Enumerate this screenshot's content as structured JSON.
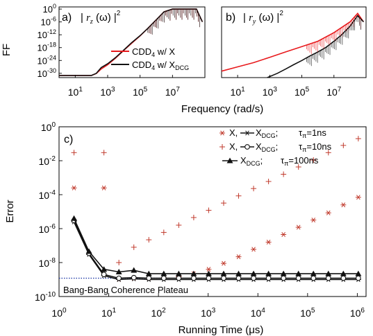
{
  "figure": {
    "ff_label": "FF",
    "shared_xlabel": "Frequency (rad/s)"
  },
  "chart_data": [
    {
      "type": "line",
      "panel": "a)",
      "title_prefix": "| ",
      "title_var": "r",
      "title_sub": "z",
      "title_suffix": " (ω) |",
      "title_sup": "2",
      "xscale": "log",
      "yscale": "log",
      "xlim": [
        1,
        1000000000.0
      ],
      "ylim": [
        1e-32,
        10
      ],
      "x_ticks": [
        10,
        1000,
        100000,
        10000000
      ],
      "x_tick_labels": [
        {
          "base": "10",
          "exp": "1"
        },
        {
          "base": "10",
          "exp": "3"
        },
        {
          "base": "10",
          "exp": "5"
        },
        {
          "base": "10",
          "exp": "7"
        }
      ],
      "y_ticks": [
        1,
        1e-06,
        1e-12,
        1e-18,
        1e-24,
        1e-30
      ],
      "y_tick_labels": [
        {
          "base": "10",
          "exp": "0"
        },
        {
          "base": "10",
          "exp": "-6"
        },
        {
          "base": "10",
          "exp": "-12"
        },
        {
          "base": "10",
          "exp": "-18"
        },
        {
          "base": "10",
          "exp": "-24"
        },
        {
          "base": "10",
          "exp": "-30"
        }
      ],
      "legend_position": "bottom-right",
      "series": [
        {
          "name": "CDD4 w/ X",
          "legend_text": "CDD",
          "legend_sub": "4",
          "legend_rest": " w/ X",
          "legend_rest_sub": "",
          "color": "#e8191c",
          "x": [
            1,
            10,
            100,
            200,
            400,
            1000,
            3000,
            10000,
            30000,
            100000,
            300000,
            1000000,
            3000000,
            10000000,
            100000000,
            300000000,
            700000000
          ],
          "y": [
            1e-31,
            1e-31,
            1e-31,
            8e-31,
            1e-28,
            1e-26,
            1e-23,
            5e-20,
            1e-16,
            3e-13,
            1e-09,
            1e-05,
            0.05,
            1,
            1,
            1,
            1e-06
          ]
        },
        {
          "name": "CDD4 w/ XDCG",
          "legend_text": "CDD",
          "legend_sub": "4",
          "legend_rest": " w/ X",
          "legend_rest_sub": "DCG",
          "color": "#111111",
          "x": [
            1,
            10,
            100,
            200,
            400,
            1000,
            3000,
            10000,
            30000,
            100000,
            300000,
            1000000,
            3000000,
            10000000,
            100000000,
            300000000,
            700000000
          ],
          "y": [
            1e-31,
            1e-31,
            1e-31,
            1e-30,
            5e-28,
            3e-26,
            2e-23,
            8e-20,
            2e-16,
            4e-13,
            1e-09,
            1e-05,
            0.05,
            1,
            1,
            1,
            1e-06
          ]
        }
      ]
    },
    {
      "type": "line",
      "panel": "b)",
      "title_prefix": "| ",
      "title_var": "r",
      "title_sub": "y",
      "title_suffix": " (ω) |",
      "title_sup": "2",
      "xscale": "log",
      "yscale": "log",
      "xlim": [
        1,
        1000000000.0
      ],
      "ylim": [
        1e-32,
        10
      ],
      "x_ticks": [
        10,
        1000,
        100000,
        10000000
      ],
      "x_tick_labels": [
        {
          "base": "10",
          "exp": "1"
        },
        {
          "base": "10",
          "exp": "3"
        },
        {
          "base": "10",
          "exp": "5"
        },
        {
          "base": "10",
          "exp": "7"
        }
      ],
      "series": [
        {
          "name": "CDD4 w/ X",
          "color": "#e8191c",
          "x": [
            1,
            10,
            100,
            1000,
            10000,
            100000,
            1000000,
            10000000,
            100000000,
            300000000,
            700000000
          ],
          "y": [
            1e-29,
            1e-27,
            1e-25,
            3e-23,
            1e-20,
            3e-18,
            1e-15,
            1e-11,
            1e-06,
            0.01,
            1e-06
          ]
        },
        {
          "name": "CDD4 w/ XDCG",
          "color": "#111111",
          "x": [
            700,
            3000,
            10000,
            30000,
            100000,
            300000,
            1000000,
            3000000,
            10000000,
            30000000,
            100000000,
            300000000,
            700000000
          ],
          "y": [
            1e-32,
            1e-30,
            1e-28,
            1e-26,
            1e-24,
            1e-22,
            1e-20,
            1e-18,
            1e-15,
            1e-12,
            1e-08,
            0.001,
            1e-06
          ]
        }
      ]
    },
    {
      "type": "scatter",
      "panel": "c)",
      "xlabel": "Running Time (μs)",
      "ylabel": "Error",
      "xscale": "log",
      "yscale": "log",
      "xlim": [
        1,
        1500000
      ],
      "ylim": [
        1e-10,
        1
      ],
      "x_ticks": [
        1,
        10,
        100,
        1000,
        10000,
        100000,
        1000000
      ],
      "x_tick_labels": [
        {
          "base": "10",
          "exp": "0"
        },
        {
          "base": "10",
          "exp": "1"
        },
        {
          "base": "10",
          "exp": "2"
        },
        {
          "base": "10",
          "exp": "3"
        },
        {
          "base": "10",
          "exp": "4"
        },
        {
          "base": "10",
          "exp": "5"
        },
        {
          "base": "10",
          "exp": "6"
        }
      ],
      "y_ticks": [
        1e-10,
        1e-08,
        1e-06,
        0.0001,
        0.01,
        1
      ],
      "y_tick_labels": [
        {
          "base": "10",
          "exp": "-10"
        },
        {
          "base": "10",
          "exp": "-8"
        },
        {
          "base": "10",
          "exp": "-6"
        },
        {
          "base": "10",
          "exp": "-4"
        },
        {
          "base": "10",
          "exp": "-2"
        },
        {
          "base": "10",
          "exp": "0"
        }
      ],
      "annotation": "Bang-Bang Coherence Plateau",
      "plateau_y": 1.2e-09,
      "legend_position": "top-right",
      "legend": [
        {
          "marker": "asterisk",
          "color": "#c0392b",
          "a": "X,",
          "b": "X",
          "b_sub": "DCG",
          "tau": "τ",
          "tau_sub": "π",
          "tau_val": "=1ns"
        },
        {
          "marker": "plus",
          "color": "#c0392b",
          "a": "X,",
          "b": "X",
          "b_sub": "DCG",
          "tau": "τ",
          "tau_sub": "π",
          "tau_val": "=10ns"
        },
        {
          "marker": "triangle",
          "color": "#111111",
          "a": "",
          "b": "X",
          "b_sub": "DCG",
          "tau": "τ",
          "tau_sub": "π",
          "tau_val": "=100ns"
        }
      ],
      "series": [
        {
          "name": "X, τπ=1ns",
          "marker": "asterisk",
          "color": "#c0392b",
          "x": [
            2,
            8,
            16,
            32,
            64,
            128,
            256,
            512,
            1024,
            2048,
            4096,
            8192,
            16384,
            32768,
            65536,
            131072,
            262144,
            524288,
            1048576
          ],
          "y": [
            0.00025,
            0.00025,
            1e-09,
            1.2e-09,
            1.2e-09,
            1.3e-09,
            1.5e-09,
            2.2e-09,
            4e-09,
            9e-09,
            2.2e-08,
            6e-08,
            1.6e-07,
            4.5e-07,
            1.2e-06,
            3.2e-06,
            8.5e-06,
            2.5e-05,
            7e-05
          ]
        },
        {
          "name": "X, τπ=10ns",
          "marker": "plus",
          "color": "#c0392b",
          "x": [
            2,
            8,
            16,
            32,
            64,
            128,
            256,
            512,
            1024,
            2048,
            4096,
            8192,
            16384,
            32768,
            65536,
            131072,
            262144,
            524288,
            1048576
          ],
          "y": [
            0.03,
            0.03,
            1e-08,
            8e-08,
            2.2e-07,
            6e-07,
            1.6e-06,
            4.5e-06,
            1.2e-05,
            3.2e-05,
            8.5e-05,
            0.00023,
            0.0006,
            0.0016,
            0.0043,
            0.011,
            0.03,
            0.08,
            0.2
          ]
        },
        {
          "name": "XDCG, τπ=1ns",
          "marker": "asterisk",
          "color": "#111111",
          "connect": true,
          "x": [
            2,
            4,
            8,
            16,
            32,
            64,
            128,
            256,
            512,
            1024,
            2048,
            4096,
            8192,
            16384,
            32768,
            65536,
            131072,
            262144,
            524288,
            1048576
          ],
          "y": [
            2.5e-06,
            3e-08,
            1.7e-09,
            1e-09,
            1.1e-09,
            1e-09,
            1e-09,
            1e-09,
            1e-09,
            1e-09,
            1e-09,
            1e-09,
            1e-09,
            1e-09,
            1e-09,
            1e-09,
            1e-09,
            1e-09,
            1e-09,
            1e-09
          ]
        },
        {
          "name": "XDCG, τπ=10ns",
          "marker": "circle",
          "color": "#111111",
          "connect": true,
          "x": [
            2,
            4,
            8,
            16,
            32,
            64,
            128,
            256,
            512,
            1024,
            2048,
            4096,
            8192,
            16384,
            32768,
            65536,
            131072,
            262144,
            524288,
            1048576
          ],
          "y": [
            3e-06,
            3.5e-08,
            2e-09,
            1.2e-09,
            1.3e-09,
            1.2e-09,
            1.2e-09,
            1.2e-09,
            1.2e-09,
            1.2e-09,
            1.2e-09,
            1.2e-09,
            1.2e-09,
            1.2e-09,
            1.2e-09,
            1.2e-09,
            1.2e-09,
            1.2e-09,
            1.2e-09,
            1.2e-09
          ]
        },
        {
          "name": "XDCG, τπ=100ns",
          "marker": "triangle",
          "color": "#111111",
          "connect": true,
          "x": [
            2,
            4,
            8,
            16,
            32,
            64,
            128,
            256,
            512,
            1024,
            2048,
            4096,
            8192,
            16384,
            32768,
            65536,
            131072,
            262144,
            524288,
            1048576
          ],
          "y": [
            4e-06,
            4.5e-08,
            4e-09,
            2.8e-09,
            3.5e-09,
            2.2e-09,
            2.2e-09,
            2.2e-09,
            2.2e-09,
            2.2e-09,
            2.2e-09,
            2.2e-09,
            2.2e-09,
            2.2e-09,
            2.2e-09,
            2.2e-09,
            2.2e-09,
            2.2e-09,
            2.2e-09,
            2.2e-09
          ]
        }
      ]
    }
  ]
}
